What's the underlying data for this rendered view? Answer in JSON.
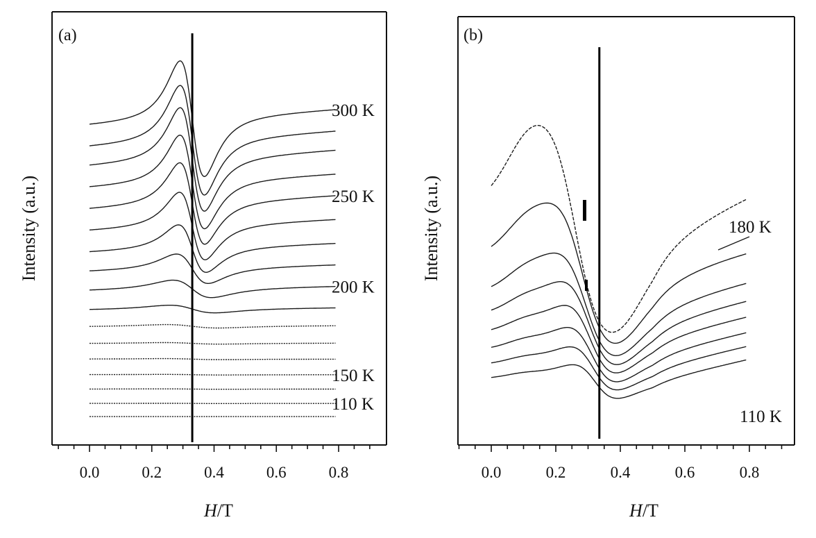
{
  "chart_data": [
    {
      "type": "line",
      "panel_label": "(a)",
      "xlabel_italic": "H",
      "xlabel_unit": "/T",
      "ylabel": "Intensity (a.u.)",
      "xlim": [
        -0.1,
        0.95
      ],
      "x_ticks": [
        "0.0",
        "0.2",
        "0.4",
        "0.6",
        "0.8"
      ],
      "x_tick_values": [
        0.0,
        0.2,
        0.4,
        0.6,
        0.8
      ],
      "reference_field": 0.33,
      "series_x_range": [
        0.0,
        0.79
      ],
      "resonance_center": 0.33,
      "temperature_labels": [
        {
          "text": "300 K",
          "curve_index": 0
        },
        {
          "text": "250 K",
          "curve_index": 4
        },
        {
          "text": "200 K",
          "curve_index": 8
        },
        {
          "text": "150 K",
          "curve_index": 13
        },
        {
          "text": "110 K",
          "curve_index": 15
        }
      ],
      "curves": [
        {
          "baseline": 12.9,
          "amplitude": 5.8,
          "width": 0.068,
          "slope": 0.7
        },
        {
          "baseline": 12.0,
          "amplitude": 5.5,
          "width": 0.068,
          "slope": 0.7
        },
        {
          "baseline": 11.2,
          "amplitude": 5.2,
          "width": 0.068,
          "slope": 0.7
        },
        {
          "baseline": 10.3,
          "amplitude": 4.7,
          "width": 0.069,
          "slope": 0.6
        },
        {
          "baseline": 9.4,
          "amplitude": 4.1,
          "width": 0.07,
          "slope": 0.6
        },
        {
          "baseline": 8.5,
          "amplitude": 3.4,
          "width": 0.072,
          "slope": 0.5
        },
        {
          "baseline": 7.6,
          "amplitude": 2.4,
          "width": 0.078,
          "slope": 0.4
        },
        {
          "baseline": 6.8,
          "amplitude": 1.5,
          "width": 0.09,
          "slope": 0.3
        },
        {
          "baseline": 6.0,
          "amplitude": 0.9,
          "width": 0.11,
          "slope": 0.2
        },
        {
          "baseline": 5.2,
          "amplitude": 0.4,
          "width": 0.13,
          "slope": 0.1
        },
        {
          "baseline": 4.5,
          "amplitude": 0.18,
          "width": 0.15,
          "slope": 0.05
        },
        {
          "baseline": 3.8,
          "amplitude": 0.08,
          "width": 0.16,
          "slope": 0.02
        },
        {
          "baseline": 3.15,
          "amplitude": 0.05,
          "width": 0.16,
          "slope": 0.0
        },
        {
          "baseline": 2.5,
          "amplitude": 0.03,
          "width": 0.16,
          "slope": 0.0
        },
        {
          "baseline": 1.9,
          "amplitude": 0.02,
          "width": 0.16,
          "slope": 0.0
        },
        {
          "baseline": 1.3,
          "amplitude": 0.01,
          "width": 0.16,
          "slope": 0.0
        },
        {
          "baseline": 0.75,
          "amplitude": 0.0,
          "width": 0.16,
          "slope": 0.0
        }
      ]
    },
    {
      "type": "line",
      "panel_label": "(b)",
      "xlabel_italic": "H",
      "xlabel_unit": "/T",
      "ylabel": "Intensity (a.u.)",
      "xlim": [
        -0.1,
        0.95
      ],
      "x_ticks": [
        "0.0",
        "0.2",
        "0.4",
        "0.6",
        "0.8"
      ],
      "x_tick_values": [
        0.0,
        0.2,
        0.4,
        0.6,
        0.8
      ],
      "reference_field": 0.335,
      "series_x_range": [
        0.0,
        0.79
      ],
      "temperature_labels": [
        {
          "text": "180 K",
          "curve_index": 0
        },
        {
          "text": "110 K",
          "curve_index": 7
        }
      ],
      "curves": [
        {
          "baseline": 10.8,
          "amplitude": 10.6,
          "center": 0.26,
          "width": 0.17,
          "tail_rise": 2.6
        },
        {
          "baseline": 8.2,
          "amplitude": 7.3,
          "center": 0.28,
          "width": 0.16,
          "tail_rise": 1.5
        },
        {
          "baseline": 6.4,
          "amplitude": 5.4,
          "center": 0.29,
          "width": 0.15,
          "tail_rise": 1.5
        },
        {
          "baseline": 5.35,
          "amplitude": 4.4,
          "center": 0.3,
          "width": 0.14,
          "tail_rise": 1.5
        },
        {
          "baseline": 4.45,
          "amplitude": 3.6,
          "center": 0.305,
          "width": 0.13,
          "tail_rise": 1.5
        },
        {
          "baseline": 3.6,
          "amplitude": 2.9,
          "center": 0.31,
          "width": 0.125,
          "tail_rise": 1.5
        },
        {
          "baseline": 2.85,
          "amplitude": 2.3,
          "center": 0.315,
          "width": 0.12,
          "tail_rise": 1.5
        },
        {
          "baseline": 2.15,
          "amplitude": 1.8,
          "center": 0.32,
          "width": 0.115,
          "tail_rise": 1.5
        }
      ]
    }
  ]
}
